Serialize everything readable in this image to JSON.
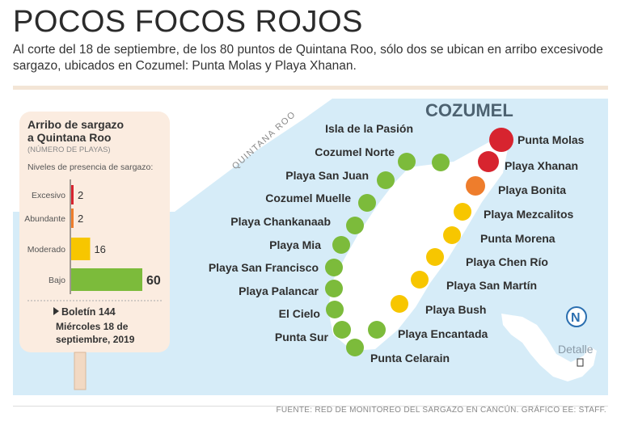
{
  "title": "POCOS FOCOS ROJOS",
  "subtitle": "Al corte del 18 de septiembre, de los 80 puntos de Quintana Roo, sólo dos se ubican en arribo excesivode sargazo, ubicados en Cozumel: Punta Molas y Playa Xhanan.",
  "source": "FUENTE: RED DE MONITOREO DEL SARGAZO EN CANCÚN. GRÁFICO EE: STAFF.",
  "map": {
    "island_label": "COZUMEL",
    "mainland_label": "QUINTANA ROO",
    "compass": "N",
    "inset_label": "Detalle",
    "colors": {
      "excesivo": "#d7242f",
      "abundante": "#ee7d2c",
      "moderado": "#f7c600",
      "bajo": "#7cbb3b",
      "water": "#d6ecf8",
      "land": "#ffffff",
      "panel": "#fbece0"
    },
    "points": [
      {
        "name": "Punta Molas",
        "level": "excesivo"
      },
      {
        "name": "Playa Xhanan",
        "level": "excesivo"
      },
      {
        "name": "Playa Bonita",
        "level": "abundante"
      },
      {
        "name": "Playa Mezcalitos",
        "level": "moderado"
      },
      {
        "name": "Punta Morena",
        "level": "moderado"
      },
      {
        "name": "Playa Chen Río",
        "level": "moderado"
      },
      {
        "name": "Playa San Martín",
        "level": "moderado"
      },
      {
        "name": "Playa Bush",
        "level": "moderado"
      },
      {
        "name": "Playa Encantada",
        "level": "bajo"
      },
      {
        "name": "Punta Celarain",
        "level": "bajo"
      },
      {
        "name": "Punta Sur",
        "level": "bajo"
      },
      {
        "name": "El Cielo",
        "level": "bajo"
      },
      {
        "name": "Playa Palancar",
        "level": "bajo"
      },
      {
        "name": "Playa San Francisco",
        "level": "bajo"
      },
      {
        "name": "Playa Mia",
        "level": "bajo"
      },
      {
        "name": "Playa Chankanaab",
        "level": "bajo"
      },
      {
        "name": "Cozumel Muelle",
        "level": "bajo"
      },
      {
        "name": "Playa San Juan",
        "level": "bajo"
      },
      {
        "name": "Cozumel Norte",
        "level": "bajo"
      },
      {
        "name": "Isla de la Pasión",
        "level": "bajo"
      }
    ]
  },
  "panel": {
    "title_line1": "Arribo de sargazo",
    "title_line2": "a Quintana Roo",
    "unit": "(NÚMERO DE PLAYAS)",
    "levels_heading": "Niveles de presencia de sargazo:",
    "bars": [
      {
        "label": "Excesivo",
        "value": 2,
        "color": "#d7242f"
      },
      {
        "label": "Abundante",
        "value": 2,
        "color": "#ee7d2c"
      },
      {
        "label": "Moderado",
        "value": 16,
        "color": "#f7c600"
      },
      {
        "label": "Bajo",
        "value": 60,
        "color": "#7cbb3b"
      }
    ],
    "bulletin_title": "Boletín 144",
    "bulletin_date_line1": "Miércoles 18 de",
    "bulletin_date_line2": "septiembre, 2019"
  }
}
